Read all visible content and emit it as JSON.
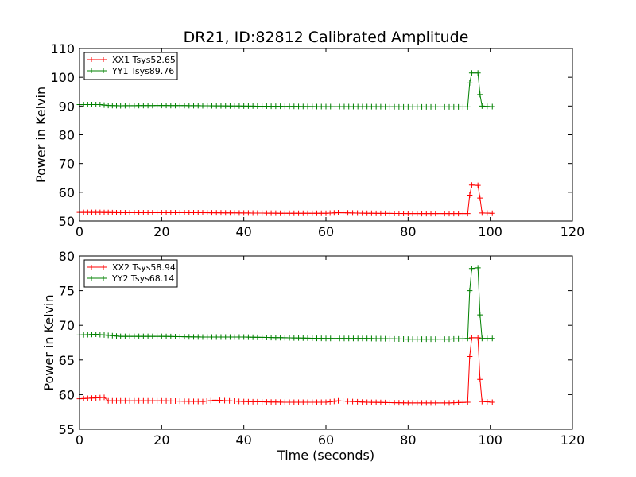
{
  "chart_data": [
    {
      "type": "line",
      "title": "DR21, ID:82812 Calibrated Amplitude",
      "ylabel": "Power in Kelvin",
      "xlabel": "",
      "xlim": [
        0,
        120
      ],
      "ylim": [
        50,
        110
      ],
      "xticks": [
        "0",
        "20",
        "40",
        "60",
        "80",
        "100",
        "120"
      ],
      "yticks": [
        "50",
        "60",
        "70",
        "80",
        "90",
        "100",
        "110"
      ],
      "grid": false,
      "legend_position": "top-left",
      "series": [
        {
          "name": "XX1 Tsys52.65",
          "color": "#ff0000",
          "x": [
            0,
            5,
            10,
            20,
            30,
            40,
            50,
            60,
            63,
            70,
            80,
            90,
            94.5,
            95,
            95.5,
            97,
            97.5,
            98,
            100.5
          ],
          "y": [
            53,
            53,
            52.9,
            52.9,
            52.9,
            52.8,
            52.7,
            52.7,
            52.9,
            52.7,
            52.6,
            52.6,
            52.6,
            59,
            62.5,
            62.4,
            58,
            52.8,
            52.7
          ]
        },
        {
          "name": "YY1 Tsys89.76",
          "color": "#008000",
          "x": [
            0,
            5,
            7,
            10,
            20,
            30,
            40,
            50,
            60,
            70,
            80,
            90,
            94.5,
            95,
            95.5,
            97,
            97.5,
            98,
            100.5
          ],
          "y": [
            90.5,
            90.5,
            90.2,
            90.1,
            90.2,
            90.1,
            90,
            89.9,
            89.8,
            89.8,
            89.7,
            89.7,
            89.7,
            98,
            101.5,
            101.5,
            94,
            90,
            89.8
          ]
        }
      ]
    },
    {
      "type": "line",
      "title": "",
      "ylabel": "Power in Kelvin",
      "xlabel": "Time (seconds)",
      "xlim": [
        0,
        120
      ],
      "ylim": [
        55,
        80
      ],
      "xticks": [
        "0",
        "20",
        "40",
        "60",
        "80",
        "100",
        "120"
      ],
      "yticks": [
        "55",
        "60",
        "65",
        "70",
        "75",
        "80"
      ],
      "grid": false,
      "legend_position": "top-left",
      "series": [
        {
          "name": "XX2 Tsys58.94",
          "color": "#ff0000",
          "x": [
            0,
            3,
            6,
            7,
            10,
            20,
            30,
            33,
            40,
            50,
            60,
            63,
            70,
            80,
            90,
            94.5,
            95,
            95.5,
            97,
            97.5,
            98,
            100.5
          ],
          "y": [
            59.4,
            59.5,
            59.6,
            59.1,
            59.1,
            59.1,
            59,
            59.2,
            59,
            58.9,
            58.9,
            59.1,
            58.9,
            58.8,
            58.8,
            58.9,
            65.5,
            68.2,
            68.2,
            62.2,
            59,
            58.9
          ]
        },
        {
          "name": "YY2 Tsys68.14",
          "color": "#008000",
          "x": [
            0,
            4,
            8,
            10,
            20,
            30,
            40,
            50,
            60,
            70,
            80,
            90,
            94.5,
            95,
            95.5,
            97,
            97.5,
            98,
            100.5
          ],
          "y": [
            68.6,
            68.7,
            68.5,
            68.4,
            68.4,
            68.3,
            68.3,
            68.2,
            68.1,
            68.1,
            68,
            68,
            68.1,
            75,
            78.2,
            78.3,
            71.5,
            68.1,
            68.1
          ]
        }
      ]
    }
  ]
}
